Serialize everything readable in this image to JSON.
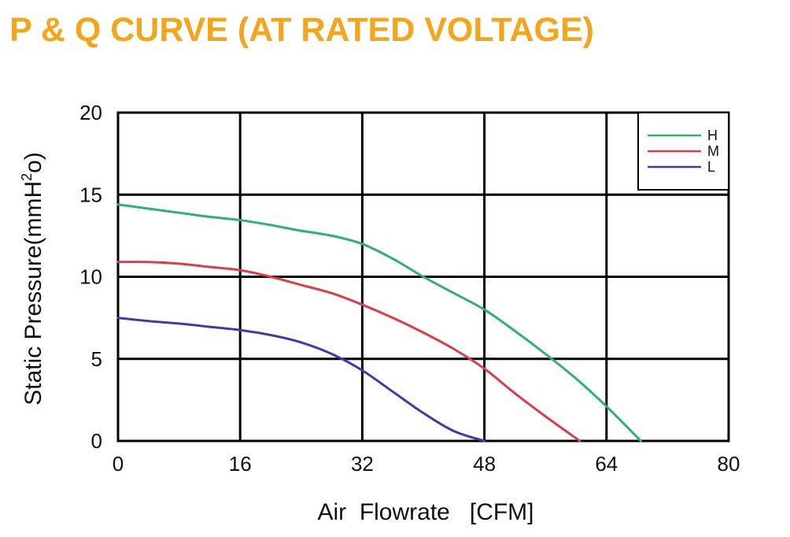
{
  "chart_data": {
    "type": "line",
    "title": "P & Q CURVE (AT RATED VOLTAGE)",
    "xlabel": "Air  Flowrate   [CFM]",
    "ylabel": "Static Pressure(mmH",
    "ylabel_sup": "2",
    "ylabel_tail": "o)",
    "xlim": [
      0,
      80
    ],
    "ylim": [
      0,
      20
    ],
    "xticks": [
      0,
      16,
      32,
      48,
      64,
      80
    ],
    "yticks": [
      0,
      5,
      10,
      15,
      20
    ],
    "grid": true,
    "legend_position": "top-right",
    "series": [
      {
        "name": "H",
        "color": "#2db36b",
        "x": [
          0,
          4,
          8,
          12,
          16,
          20,
          24,
          28,
          32,
          36,
          40,
          44,
          48,
          52,
          56,
          60,
          64,
          68.5
        ],
        "y": [
          14.4,
          14.15,
          13.9,
          13.65,
          13.45,
          13.15,
          12.8,
          12.5,
          12.0,
          11.1,
          10.0,
          9.0,
          8.0,
          6.7,
          5.3,
          3.8,
          2.1,
          0
        ]
      },
      {
        "name": "M",
        "color": "#e03b4a",
        "x": [
          0,
          4,
          8,
          12,
          16,
          20,
          24,
          28,
          32,
          36,
          40,
          44,
          48,
          52,
          56,
          60.5
        ],
        "y": [
          10.9,
          10.9,
          10.8,
          10.6,
          10.4,
          10.0,
          9.5,
          9.0,
          8.3,
          7.5,
          6.6,
          5.6,
          4.4,
          2.9,
          1.5,
          0
        ]
      },
      {
        "name": "L",
        "color": "#3a3fa3",
        "x": [
          0,
          4,
          8,
          12,
          16,
          20,
          24,
          28,
          32,
          36,
          40,
          44,
          48
        ],
        "y": [
          7.5,
          7.3,
          7.15,
          6.95,
          6.75,
          6.45,
          6.0,
          5.3,
          4.3,
          3.0,
          1.7,
          0.6,
          0
        ]
      }
    ]
  },
  "style": {
    "title_color": "#f3a51c",
    "grid_color": "#000000",
    "background": "#ffffff"
  }
}
